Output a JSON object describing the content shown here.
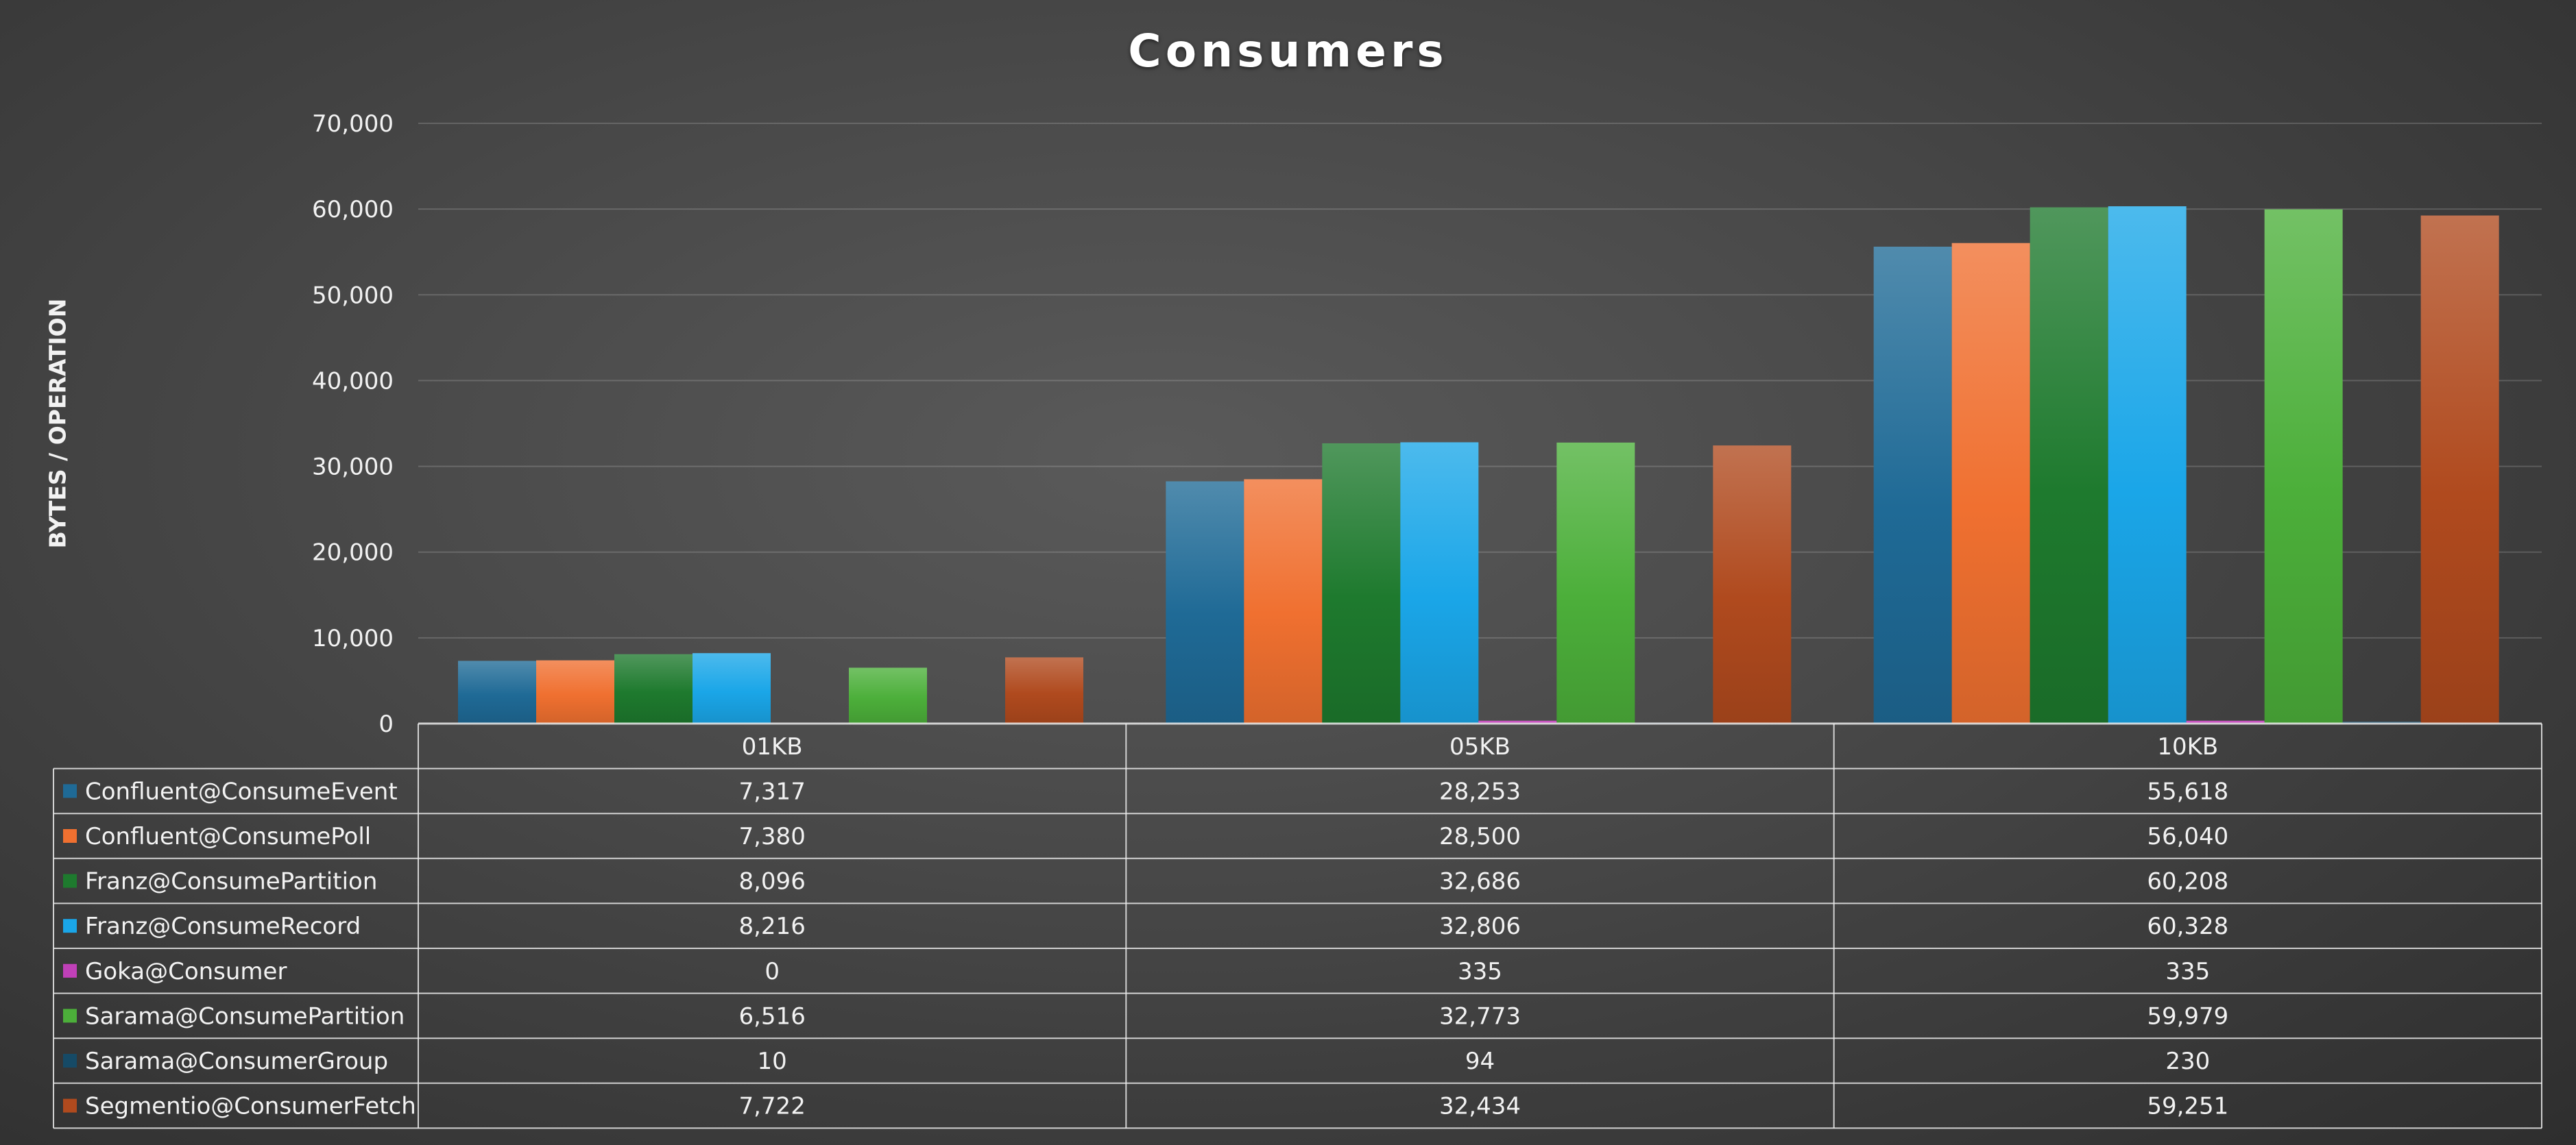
{
  "chart_data": {
    "type": "bar",
    "title": "Consumers",
    "xlabel": "",
    "ylabel": "BYTES / OPERATION",
    "ylim": [
      0,
      70000
    ],
    "yticks": [
      "0",
      "10,000",
      "20,000",
      "30,000",
      "40,000",
      "50,000",
      "60,000",
      "70,000"
    ],
    "grid": true,
    "legend": "data-table",
    "categories": [
      "01KB",
      "05KB",
      "10KB"
    ],
    "series": [
      {
        "name": "Confluent@ConsumeEvent",
        "color": "#1f6a96",
        "values": [
          7317,
          28253,
          55618
        ],
        "labels": [
          "7,317",
          "28,253",
          "55,618"
        ]
      },
      {
        "name": "Confluent@ConsumePoll",
        "color": "#f07030",
        "values": [
          7380,
          28500,
          56040
        ],
        "labels": [
          "7,380",
          "28,500",
          "56,040"
        ]
      },
      {
        "name": "Franz@ConsumePartition",
        "color": "#1e7a2e",
        "values": [
          8096,
          32686,
          60208
        ],
        "labels": [
          "8,096",
          "32,686",
          "60,208"
        ]
      },
      {
        "name": "Franz@ConsumeRecord",
        "color": "#1aa6e8",
        "values": [
          8216,
          32806,
          60328
        ],
        "labels": [
          "8,216",
          "32,806",
          "60,328"
        ]
      },
      {
        "name": "Goka@Consumer",
        "color": "#c040b8",
        "values": [
          0,
          335,
          335
        ],
        "labels": [
          "0",
          "335",
          "335"
        ]
      },
      {
        "name": "Sarama@ConsumePartition",
        "color": "#4caf3a",
        "values": [
          6516,
          32773,
          59979
        ],
        "labels": [
          "6,516",
          "32,773",
          "59,979"
        ]
      },
      {
        "name": "Sarama@ConsumerGroup",
        "color": "#164a66",
        "values": [
          10,
          94,
          230
        ],
        "labels": [
          "10",
          "94",
          "230"
        ]
      },
      {
        "name": "Segmentio@ConsumerFetch",
        "color": "#b04a1e",
        "values": [
          7722,
          32434,
          59251
        ],
        "labels": [
          "7,722",
          "32,434",
          "59,251"
        ]
      }
    ]
  }
}
